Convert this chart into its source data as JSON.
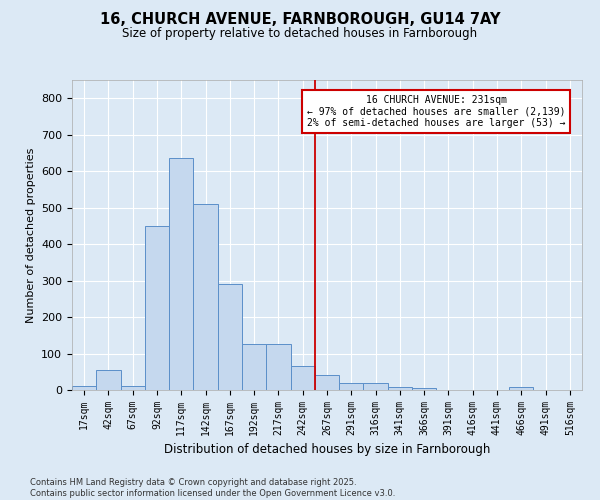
{
  "title": "16, CHURCH AVENUE, FARNBOROUGH, GU14 7AY",
  "subtitle": "Size of property relative to detached houses in Farnborough",
  "xlabel": "Distribution of detached houses by size in Farnborough",
  "ylabel": "Number of detached properties",
  "bin_labels": [
    "17sqm",
    "42sqm",
    "67sqm",
    "92sqm",
    "117sqm",
    "142sqm",
    "167sqm",
    "192sqm",
    "217sqm",
    "242sqm",
    "267sqm",
    "291sqm",
    "316sqm",
    "341sqm",
    "366sqm",
    "391sqm",
    "416sqm",
    "441sqm",
    "466sqm",
    "491sqm",
    "516sqm"
  ],
  "bar_values": [
    10,
    55,
    10,
    450,
    635,
    510,
    290,
    125,
    125,
    65,
    40,
    20,
    20,
    8,
    6,
    0,
    0,
    0,
    7,
    0,
    0
  ],
  "bar_color": "#c5d8ee",
  "bar_edge_color": "#5b8fc9",
  "bg_color": "#dce9f5",
  "vline_x": 9.5,
  "annotation_title": "16 CHURCH AVENUE: 231sqm",
  "annotation_line1": "← 97% of detached houses are smaller (2,139)",
  "annotation_line2": "2% of semi-detached houses are larger (53) →",
  "annotation_box_facecolor": "#ffffff",
  "annotation_border_color": "#cc0000",
  "vline_color": "#cc0000",
  "ylim": [
    0,
    850
  ],
  "yticks": [
    0,
    100,
    200,
    300,
    400,
    500,
    600,
    700,
    800
  ],
  "footnote1": "Contains HM Land Registry data © Crown copyright and database right 2025.",
  "footnote2": "Contains public sector information licensed under the Open Government Licence v3.0."
}
